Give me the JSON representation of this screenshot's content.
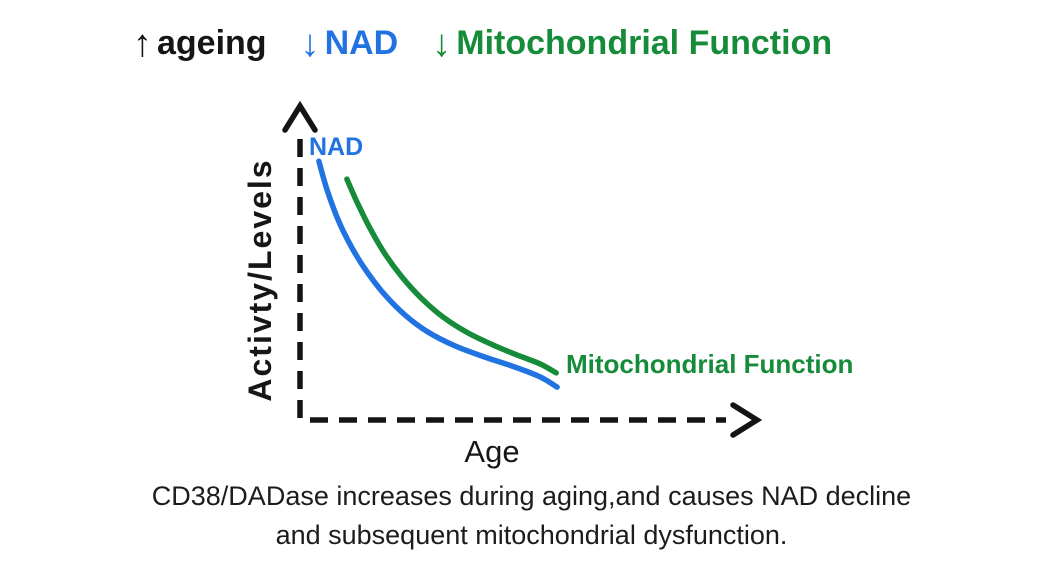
{
  "page": {
    "background": "#ffffff"
  },
  "header": {
    "items": [
      {
        "arrow": "↑",
        "label": "ageing",
        "color": "#151515"
      },
      {
        "arrow": "↓",
        "label": "NAD",
        "color": "#2273e2"
      },
      {
        "arrow": "↓",
        "label": "Mitochondrial Function",
        "color": "#168c3a"
      }
    ]
  },
  "chart_data": {
    "type": "line",
    "title": "",
    "xlabel": "Age",
    "ylabel": "Activty/Levels",
    "axis_style": "dashed-with-arrowheads",
    "axis_color": "#141414",
    "grid": false,
    "legend_position": "inline-curve-labels",
    "xlim": [
      0,
      1
    ],
    "ylim": [
      0,
      1
    ],
    "series": [
      {
        "name": "NAD",
        "color": "#2273e2",
        "label_anchor": "start-of-curve",
        "points": [
          [
            0.041,
            0.835
          ],
          [
            0.059,
            0.742
          ],
          [
            0.083,
            0.645
          ],
          [
            0.113,
            0.555
          ],
          [
            0.146,
            0.477
          ],
          [
            0.185,
            0.403
          ],
          [
            0.228,
            0.339
          ],
          [
            0.278,
            0.284
          ],
          [
            0.337,
            0.239
          ],
          [
            0.402,
            0.203
          ],
          [
            0.467,
            0.171
          ],
          [
            0.522,
            0.139
          ],
          [
            0.559,
            0.106
          ]
        ]
      },
      {
        "name": "Mitochondrial Function",
        "color": "#168c3a",
        "label_anchor": "end-of-curve",
        "points": [
          [
            0.102,
            0.777
          ],
          [
            0.124,
            0.703
          ],
          [
            0.152,
            0.619
          ],
          [
            0.185,
            0.535
          ],
          [
            0.222,
            0.461
          ],
          [
            0.263,
            0.394
          ],
          [
            0.311,
            0.332
          ],
          [
            0.365,
            0.281
          ],
          [
            0.424,
            0.239
          ],
          [
            0.478,
            0.206
          ],
          [
            0.522,
            0.181
          ],
          [
            0.557,
            0.152
          ]
        ]
      }
    ]
  },
  "caption": {
    "line1": "CD38/DADase increases during aging,and causes NAD decline",
    "line2": "and subsequent mitochondrial dysfunction."
  }
}
